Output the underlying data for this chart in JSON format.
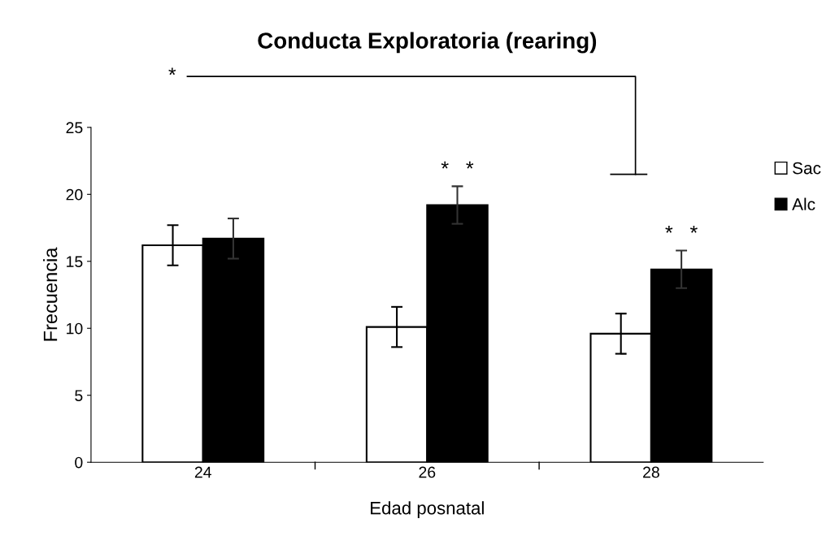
{
  "chart_data": {
    "type": "bar",
    "title": "Conducta Exploratoria (rearing)",
    "xlabel": "Edad posnatal",
    "ylabel": "Frecuencia",
    "categories": [
      "24",
      "26",
      "28"
    ],
    "series": [
      {
        "name": "Sac",
        "color": "#ffffff",
        "values": [
          16.2,
          10.1,
          9.6
        ],
        "errors": [
          1.5,
          1.5,
          1.5
        ]
      },
      {
        "name": "Alc",
        "color": "#000000",
        "values": [
          16.7,
          19.2,
          14.4
        ],
        "errors": [
          1.5,
          1.4,
          1.4
        ]
      }
    ],
    "ylim": [
      0,
      25
    ],
    "yticks": [
      0,
      5,
      10,
      15,
      20,
      25
    ],
    "grid": false,
    "legend": "right",
    "annotations": [
      "*",
      "*   *",
      "*   *"
    ]
  }
}
